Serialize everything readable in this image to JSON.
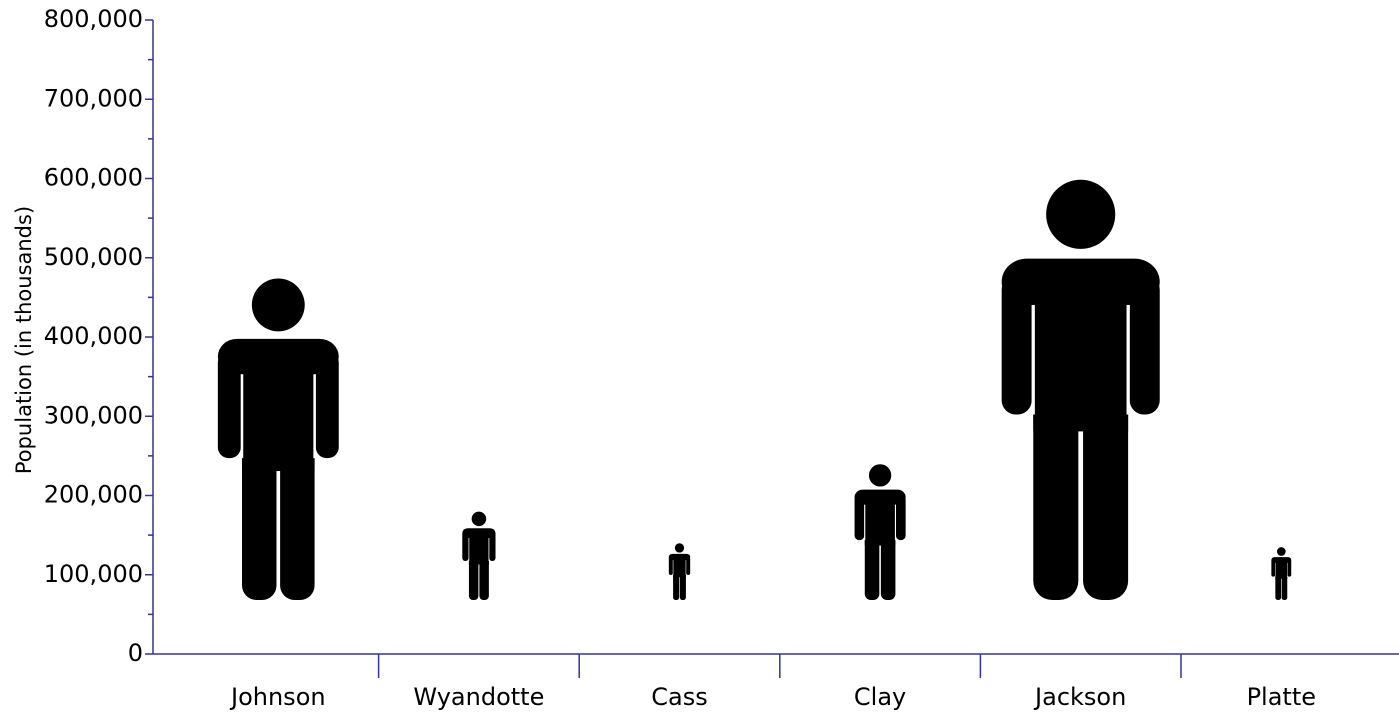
{
  "chart_data": {
    "type": "pictograph",
    "y_label": "Population (in thousands)",
    "categories": [
      "Johnson",
      "Wyandotte",
      "Cass",
      "Clay",
      "Jackson",
      "Platte"
    ],
    "values": [
      475000,
      180000,
      140000,
      240000,
      600000,
      135000
    ],
    "color": "#000000",
    "ylim": [
      0,
      800000
    ],
    "yticks": [
      0,
      {
        "value": 100000,
        "label": "100,000"
      },
      {
        "value": 200000,
        "label": "200,000"
      },
      {
        "value": 300000,
        "label": "300,000"
      },
      {
        "value": 400000,
        "label": "400,000"
      },
      {
        "value": 500000,
        "label": "500,000"
      },
      {
        "value": 600000,
        "label": "600,000"
      },
      {
        "value": 700000,
        "label": "700,000"
      },
      {
        "value": 800000,
        "label": "800,000"
      }
    ],
    "yminorticks": [
      50000,
      150000,
      250000,
      350000,
      450000,
      550000,
      650000,
      750000
    ]
  }
}
